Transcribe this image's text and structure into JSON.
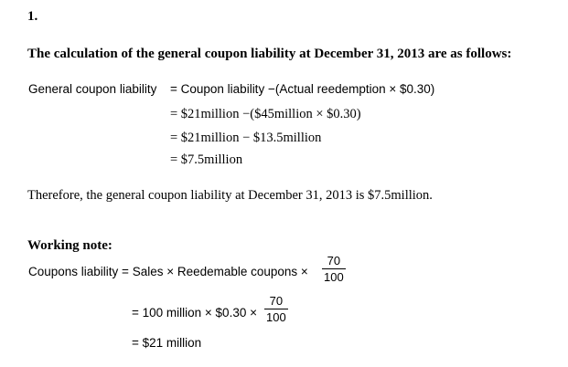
{
  "question_number": "1.",
  "heading": "The calculation of the general coupon liability at December 31, 2013 are as follows:",
  "calc": {
    "line1_lhs": "General coupon liability",
    "line1_rhs": "= Coupon liability −(Actual reedemption × $0.30)",
    "line2": "= $21million −($45million × $0.30)",
    "line3": "= $21million − $13.5million",
    "line4": "= $7.5million"
  },
  "conclusion": "Therefore, the general coupon liability at December 31, 2013 is $7.5million.",
  "working_note": {
    "heading": "Working note:",
    "line1_text": "Coupons liability = Sales × Reedemable coupons ×",
    "line1_num": "70",
    "line1_den": "100",
    "line2_text": "= 100 million × $0.30 ×",
    "line2_num": "70",
    "line2_den": "100",
    "line3": "= $21 million"
  }
}
